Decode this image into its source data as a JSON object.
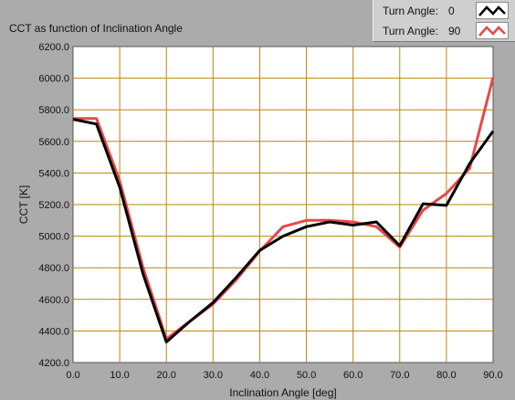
{
  "chart_data": {
    "type": "line",
    "title": "CCT as function of Inclination Angle",
    "xlabel": "Inclination Angle [deg]",
    "ylabel": "CCT [K]",
    "xlim": [
      0,
      90
    ],
    "ylim": [
      4200,
      6200
    ],
    "x_ticks": [
      "0.0",
      "10.0",
      "20.0",
      "30.0",
      "40.0",
      "50.0",
      "60.0",
      "70.0",
      "80.0",
      "90.0"
    ],
    "y_ticks": [
      "4200.0",
      "4400.0",
      "4600.0",
      "4800.0",
      "5000.0",
      "5200.0",
      "5400.0",
      "5600.0",
      "5800.0",
      "6000.0",
      "6200.0"
    ],
    "grid": true,
    "legend_position": "top-right",
    "colors": {
      "grid": "#b8860b",
      "background": "#ffffff"
    },
    "series": [
      {
        "name": "Turn Angle:",
        "legend_value": "0",
        "color": "#000000",
        "x": [
          0,
          5,
          10,
          15,
          20,
          25,
          30,
          35,
          40,
          45,
          50,
          55,
          60,
          65,
          70,
          75,
          80,
          85,
          90
        ],
        "y": [
          5740,
          5710,
          5310,
          4760,
          4330,
          4460,
          4580,
          4740,
          4910,
          5000,
          5060,
          5090,
          5070,
          5090,
          4940,
          5205,
          5195,
          5460,
          5665
        ]
      },
      {
        "name": "Turn Angle:",
        "legend_value": "90",
        "color": "#e84848",
        "x": [
          0,
          5,
          10,
          15,
          20,
          25,
          30,
          35,
          40,
          45,
          50,
          55,
          60,
          65,
          70,
          75,
          80,
          85,
          90
        ],
        "y": [
          5745,
          5745,
          5350,
          4800,
          4350,
          4460,
          4570,
          4725,
          4905,
          5060,
          5100,
          5100,
          5090,
          5060,
          4930,
          5165,
          5270,
          5430,
          6005
        ]
      }
    ]
  }
}
